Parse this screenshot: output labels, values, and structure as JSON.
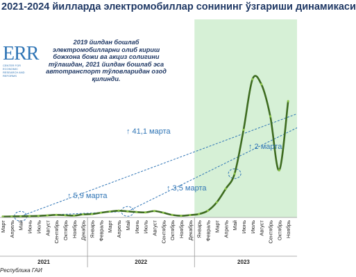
{
  "title": "2021-2024 йилларда электромобиллар сонининг ўзгариши динамикаси",
  "logo": {
    "text": "ERR",
    "subtitle": "CENTER FOR ECONOMIC RESEARCH AND REFORMS"
  },
  "note": "2019 йилдан бошлаб электромобилларни олиб кириш божхона божи ва акциз солигини тўлашдан, 2021 йилдан бошлаб эса автотранспорт тўловларидан озод қилинди.",
  "source": "Республика ГАИ",
  "colors": {
    "line": "#3d6b1f",
    "markers": "#8bc34a",
    "trend": "#2e74b5",
    "highlight": "#d6f0d6",
    "title": "#1f3864"
  },
  "chart_data": {
    "type": "line",
    "title": "2021-2024 йилларда электромобиллар сонининг ўзгариши динамикаси",
    "categories": [
      "Март",
      "Апрель",
      "Май",
      "Июнь",
      "Июль",
      "Август",
      "Сентябрь",
      "Октябрь",
      "Ноябрь",
      "Декабрь",
      "Январь",
      "Февраль",
      "Март",
      "Апрель",
      "Май",
      "Июнь",
      "Июль",
      "Август",
      "Сентябрь",
      "Октябрь",
      "Ноябрь",
      "Декабрь",
      "Январь",
      "Февраль",
      "Март",
      "Апрель",
      "Май",
      "Июнь",
      "Июль",
      "Август",
      "Сентябрь",
      "Октябрь",
      "Ноябрь"
    ],
    "years": [
      {
        "label": "2021",
        "start": 0,
        "end": 9
      },
      {
        "label": "2022",
        "start": 10,
        "end": 21
      },
      {
        "label": "2023",
        "start": 22,
        "end": 32
      }
    ],
    "values": [
      5,
      6,
      7,
      8,
      9,
      12,
      15,
      13,
      11,
      18,
      20,
      28,
      35,
      40,
      36,
      32,
      30,
      38,
      28,
      15,
      10,
      14,
      20,
      40,
      90,
      170,
      260,
      520,
      820,
      790,
      600,
      280,
      690
    ],
    "highlight_range": [
      22,
      32
    ],
    "grid": false,
    "annotations": [
      {
        "text": "↑ 41,1 марта"
      },
      {
        "text": "↑ 5,9 марта"
      },
      {
        "text": "↑ 3,5 марта"
      },
      {
        "text": "↑ 2 марта"
      }
    ]
  }
}
